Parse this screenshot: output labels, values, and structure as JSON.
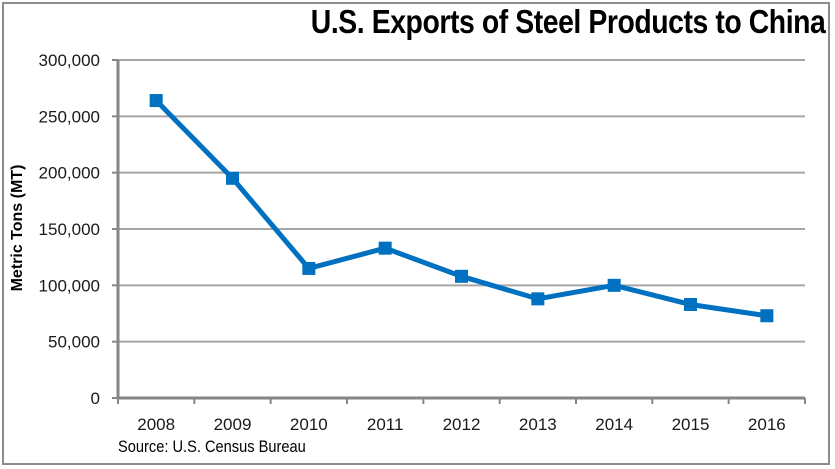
{
  "chart_data": {
    "type": "line",
    "title": "U.S. Exports of Steel Products to China",
    "xlabel": "",
    "ylabel": "Metric Tons (MT)",
    "source": "Source: U.S. Census Bureau",
    "categories": [
      "2008",
      "2009",
      "2010",
      "2011",
      "2012",
      "2013",
      "2014",
      "2015",
      "2016"
    ],
    "series": [
      {
        "name": "U.S. Exports of Steel Products to China",
        "values": [
          264000,
          195000,
          115000,
          133000,
          108000,
          88000,
          100000,
          83000,
          73000
        ],
        "color": "#0070c0",
        "marker": "square"
      }
    ],
    "ylim": [
      0,
      300000
    ],
    "yticks": [
      0,
      50000,
      100000,
      150000,
      200000,
      250000,
      300000
    ],
    "ytick_labels": [
      "0",
      "50,000",
      "100,000",
      "150,000",
      "200,000",
      "250,000",
      "300,000"
    ],
    "grid": true,
    "legend": "none"
  },
  "colors": {
    "line": "#0070c0",
    "grid": "#a6a6a6",
    "axis": "#868686"
  }
}
